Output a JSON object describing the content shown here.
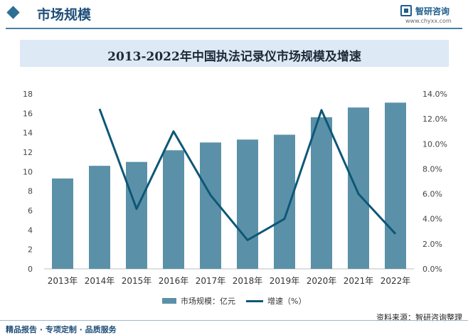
{
  "header": {
    "title": "市场规模",
    "brand_name": "智研咨询",
    "brand_url": "www.chyxx.com"
  },
  "chart_data": {
    "type": "bar",
    "title": "2013-2022年中国执法记录仪市场规模及增速",
    "categories": [
      "2013年",
      "2014年",
      "2015年",
      "2016年",
      "2017年",
      "2018年",
      "2019年",
      "2020年",
      "2021年",
      "2022年"
    ],
    "series": [
      {
        "name": "市场规模：亿元",
        "type": "bar",
        "axis": "left",
        "color": "#5b91a8",
        "values": [
          9.3,
          10.6,
          11.0,
          12.2,
          13.0,
          13.3,
          13.8,
          15.6,
          16.6,
          17.1
        ]
      },
      {
        "name": "增速（%）",
        "type": "line",
        "axis": "right",
        "color": "#0e5777",
        "values": [
          null,
          12.8,
          4.8,
          11.0,
          5.9,
          2.3,
          4.0,
          12.7,
          6.0,
          2.8
        ]
      }
    ],
    "left_axis": {
      "ylim": [
        0,
        18
      ],
      "ticks": [
        "0",
        "2",
        "4",
        "6",
        "8",
        "10",
        "12",
        "14",
        "16",
        "18"
      ]
    },
    "right_axis": {
      "ylim": [
        0,
        14
      ],
      "ticks": [
        "0.0%",
        "2.0%",
        "4.0%",
        "6.0%",
        "8.0%",
        "10.0%",
        "12.0%",
        "14.0%"
      ]
    },
    "grid": false,
    "legend_position": "bottom"
  },
  "legend": {
    "bar_label": "市场规模：亿元",
    "line_label": "增速（%）"
  },
  "source": "资料来源：智研咨询整理",
  "footer": "精品报告 · 专项定制 · 品质服务",
  "colors": {
    "accent": "#1f4e79",
    "bar": "#5b91a8",
    "line": "#0e5777",
    "title_band": "#dde9f4"
  }
}
